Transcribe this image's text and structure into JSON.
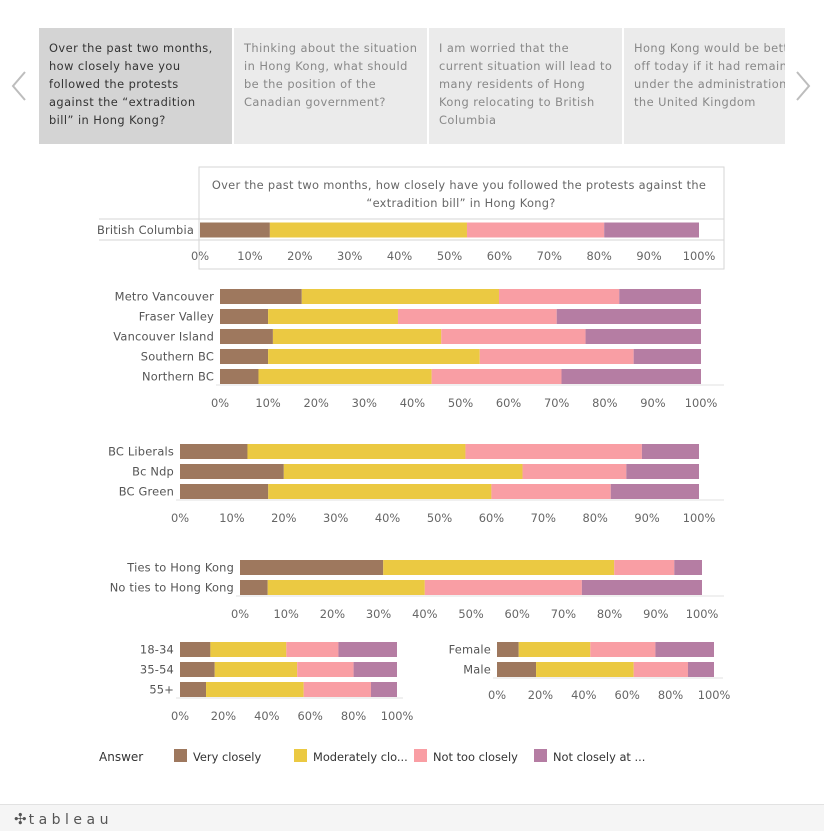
{
  "tabs": [
    {
      "label": "Over the past two months, how closely have you followed the protests against the “extradition bill” in Hong Kong?",
      "active": true
    },
    {
      "label": "Thinking about the situation in Hong Kong, what should be the position of the Canadian government?",
      "active": false
    },
    {
      "label": "I am worried that the current situation will lead to many residents of Hong Kong relocating to British Columbia",
      "active": false
    },
    {
      "label": "Hong Kong would be better off today if it had remained under the administration of the United Kingdom",
      "active": false
    }
  ],
  "colors": {
    "very_closely": "#9e785e",
    "moderately_closely": "#ebc942",
    "not_too_closely": "#f99ea4",
    "not_closely_at_all": "#b57da3"
  },
  "legend": {
    "title": "Answer",
    "items": [
      "Very closely",
      "Moderately clo...",
      "Not too closely",
      "Not closely at ..."
    ]
  },
  "footer": {
    "logo": "tableau"
  },
  "chart_data": [
    {
      "type": "bar",
      "orientation": "horizontal",
      "stacked": true,
      "title": "Over the past two months, how closely have you followed the protests against the “extradition bill” in Hong Kong?",
      "categories": [
        "British Columbia"
      ],
      "series": [
        {
          "name": "Very closely",
          "values": [
            14
          ]
        },
        {
          "name": "Moderately closely",
          "values": [
            39.5
          ]
        },
        {
          "name": "Not too closely",
          "values": [
            27.5
          ]
        },
        {
          "name": "Not closely at all",
          "values": [
            19
          ]
        }
      ],
      "xlim": [
        0,
        100
      ],
      "ticks": [
        "0%",
        "10%",
        "20%",
        "30%",
        "40%",
        "50%",
        "60%",
        "70%",
        "80%",
        "90%",
        "100%"
      ]
    },
    {
      "type": "bar",
      "orientation": "horizontal",
      "stacked": true,
      "categories": [
        "Metro Vancouver",
        "Fraser Valley",
        "Vancouver Island",
        "Southern BC",
        "Northern BC"
      ],
      "series": [
        {
          "name": "Very closely",
          "values": [
            17,
            10,
            11,
            10,
            8
          ]
        },
        {
          "name": "Moderately closely",
          "values": [
            41,
            27,
            35,
            44,
            36
          ]
        },
        {
          "name": "Not too closely",
          "values": [
            25,
            33,
            30,
            32,
            27
          ]
        },
        {
          "name": "Not closely at all",
          "values": [
            17,
            30,
            24,
            14,
            29
          ]
        }
      ],
      "xlim": [
        0,
        100
      ],
      "ticks": [
        "0%",
        "10%",
        "20%",
        "30%",
        "40%",
        "50%",
        "60%",
        "70%",
        "80%",
        "90%",
        "100%"
      ]
    },
    {
      "type": "bar",
      "orientation": "horizontal",
      "stacked": true,
      "categories": [
        "BC Liberals",
        "Bc Ndp",
        "BC Green"
      ],
      "series": [
        {
          "name": "Very closely",
          "values": [
            13,
            20,
            17
          ]
        },
        {
          "name": "Moderately closely",
          "values": [
            42,
            46,
            43
          ]
        },
        {
          "name": "Not too closely",
          "values": [
            34,
            20,
            23
          ]
        },
        {
          "name": "Not closely at all",
          "values": [
            11,
            14,
            17
          ]
        }
      ],
      "xlim": [
        0,
        100
      ],
      "ticks": [
        "0%",
        "10%",
        "20%",
        "30%",
        "40%",
        "50%",
        "60%",
        "70%",
        "80%",
        "90%",
        "100%"
      ]
    },
    {
      "type": "bar",
      "orientation": "horizontal",
      "stacked": true,
      "categories": [
        "Ties to Hong Kong",
        "No ties to Hong Kong"
      ],
      "series": [
        {
          "name": "Very closely",
          "values": [
            31,
            6
          ]
        },
        {
          "name": "Moderately closely",
          "values": [
            50,
            34
          ]
        },
        {
          "name": "Not too closely",
          "values": [
            13,
            34
          ]
        },
        {
          "name": "Not closely at all",
          "values": [
            6,
            26
          ]
        }
      ],
      "xlim": [
        0,
        100
      ],
      "ticks": [
        "0%",
        "10%",
        "20%",
        "30%",
        "40%",
        "50%",
        "60%",
        "70%",
        "80%",
        "90%",
        "100%"
      ]
    },
    {
      "type": "bar",
      "orientation": "horizontal",
      "stacked": true,
      "categories": [
        "18-34",
        "35-54",
        "55+"
      ],
      "series": [
        {
          "name": "Very closely",
          "values": [
            14,
            16,
            12
          ]
        },
        {
          "name": "Moderately closely",
          "values": [
            35,
            38,
            45
          ]
        },
        {
          "name": "Not too closely",
          "values": [
            24,
            26,
            31
          ]
        },
        {
          "name": "Not closely at all",
          "values": [
            27,
            20,
            12
          ]
        }
      ],
      "xlim": [
        0,
        100
      ],
      "ticks": [
        "0%",
        "20%",
        "40%",
        "60%",
        "80%",
        "100%"
      ]
    },
    {
      "type": "bar",
      "orientation": "horizontal",
      "stacked": true,
      "categories": [
        "Female",
        "Male"
      ],
      "series": [
        {
          "name": "Very closely",
          "values": [
            10,
            18
          ]
        },
        {
          "name": "Moderately closely",
          "values": [
            33,
            45
          ]
        },
        {
          "name": "Not too closely",
          "values": [
            30,
            25
          ]
        },
        {
          "name": "Not closely at all",
          "values": [
            27,
            12
          ]
        }
      ],
      "xlim": [
        0,
        100
      ],
      "ticks": [
        "0%",
        "20%",
        "40%",
        "60%",
        "80%",
        "100%"
      ]
    }
  ]
}
